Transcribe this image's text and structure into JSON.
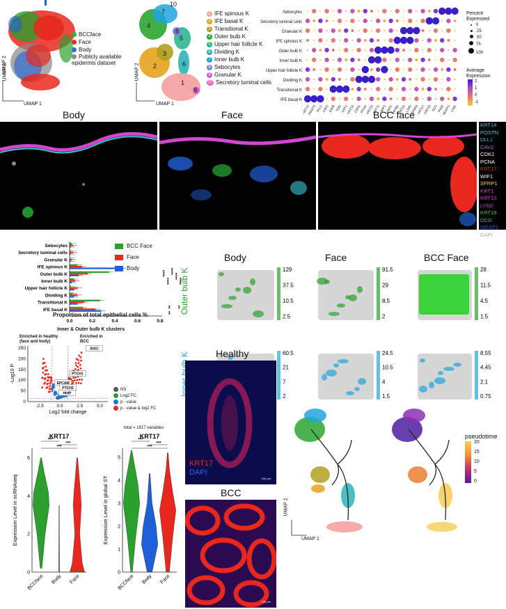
{
  "colors": {
    "green": "#2ca02c",
    "red": "#e8281e",
    "blue": "#1f5fd6",
    "grey": "#888888"
  },
  "umap_a": {
    "legend": [
      {
        "label": "BCCface",
        "color": "#2db52d"
      },
      {
        "label": "Face",
        "color": "#e32b1f"
      },
      {
        "label": "Body",
        "color": "#2f6fd3"
      },
      {
        "label": "Publicly available epidermis dataset",
        "color": "#8c8c8c"
      }
    ],
    "x_label": "UMAP 1",
    "y_label": "UMAP 2"
  },
  "umap_b": {
    "legend": [
      {
        "n": "1",
        "label": "IFE spinous K",
        "color": "#f4a3a0"
      },
      {
        "n": "2",
        "label": "IFE basal K",
        "color": "#e6a21e"
      },
      {
        "n": "3",
        "label": "Transitional K",
        "color": "#b0a020"
      },
      {
        "n": "4",
        "label": "Outer bulb K",
        "color": "#2aa530"
      },
      {
        "n": "5",
        "label": "Upper hair follicle K",
        "color": "#22b38a"
      },
      {
        "n": "6",
        "label": "Dividing K",
        "color": "#20aeb5"
      },
      {
        "n": "7",
        "label": "Inner bulb K",
        "color": "#22a5dc"
      },
      {
        "n": "8",
        "label": "Sebocytes",
        "color": "#7a7fdc"
      },
      {
        "n": "9",
        "label": "Granular K",
        "color": "#d05ad0"
      },
      {
        "n": "10",
        "label": "Secretory luminal cells",
        "color": "#ef5ea5"
      }
    ],
    "cluster_labels": [
      "1",
      "2",
      "3",
      "4",
      "5",
      "6",
      "7",
      "8",
      "9",
      "10"
    ],
    "x_label": "UMAP 1",
    "y_label": "UMAP 2"
  },
  "dotplot": {
    "rows": [
      "Sebocytes",
      "Secretory luminal cells",
      "Granular K",
      "IFE spinous K",
      "Outer bulb K",
      "Inner bulb K",
      "Upper hair follicle K",
      "Dividing K",
      "Transitional K",
      "IFE basal K"
    ],
    "genes": [
      "KRT14",
      "POSTN",
      "DLL1",
      "CAV2",
      "JUNB",
      "FOS",
      "KRT1",
      "KRT10",
      "CDH1",
      "PCNA",
      "KRT25",
      "KRT71",
      "WIF1",
      "SFRP1",
      "KRT6A",
      "KRT15",
      "LY6D",
      "SPRR3",
      "KRT17",
      "KRT19",
      "DCD",
      "PIGR",
      "MGST1",
      "LY6K"
    ],
    "pct_title": "Percent Expressed",
    "pct_values": [
      "0",
      "25",
      "50",
      "75",
      "100"
    ],
    "avg_title": "Average Expression",
    "avg_values": [
      "2",
      "1",
      "0",
      "-1"
    ]
  },
  "tissue_titles": {
    "body": "Body",
    "face": "Face",
    "bcc": "BCC face"
  },
  "markers": [
    {
      "name": "KRT14",
      "color": "#3ec7d6"
    },
    {
      "name": "POSTN",
      "color": "#3ec7d6"
    },
    {
      "name": "DLL1",
      "color": "#39b6e0"
    },
    {
      "name": "CAV2",
      "color": "#b46ce0"
    },
    {
      "name": "CDK1",
      "color": "#ffffff"
    },
    {
      "name": "PCNA",
      "color": "#ffffff"
    },
    {
      "name": "KRT17",
      "color": "#e8281e"
    },
    {
      "name": "WIF1",
      "color": "#ffffff"
    },
    {
      "name": "SFRP1",
      "color": "#ffd22a"
    },
    {
      "name": "KRT1",
      "color": "#e23fd6"
    },
    {
      "name": "KRT10",
      "color": "#e23fd6"
    },
    {
      "name": "LY6D",
      "color": "#b44bd6"
    },
    {
      "name": "KRT19",
      "color": "#2ecc40"
    },
    {
      "name": "DCD",
      "color": "#2ecc40"
    },
    {
      "name": "MGST1",
      "color": "#2f5fe0"
    },
    {
      "name": "DAPI",
      "color": "#aaaaaa"
    }
  ],
  "chart_data": [
    {
      "type": "bar",
      "title": "",
      "xlabel": "Proportion of total epithelial cells %",
      "categories": [
        "Sebocytes",
        "Secretory luminal cells",
        "Granular K",
        "IFE spinous K",
        "Outer bulb K",
        "Inner bulb K",
        "Upper hair follicle K",
        "Dividing K",
        "Transitional K",
        "IFE basal K"
      ],
      "series": [
        {
          "name": "BCC Face",
          "values": [
            0.02,
            0.01,
            0.0,
            0.07,
            0.35,
            0.04,
            0.01,
            0.03,
            0.27,
            0.12
          ]
        },
        {
          "name": "Face",
          "values": [
            0.03,
            0.03,
            0.02,
            0.11,
            0.16,
            0.05,
            0.07,
            0.07,
            0.13,
            0.23
          ]
        },
        {
          "name": "Body",
          "values": [
            0.01,
            0.01,
            0.01,
            0.46,
            0.08,
            0.02,
            0.04,
            0.04,
            0.07,
            0.28
          ]
        }
      ],
      "xticks": [
        "0.0",
        "0.2",
        "0.4",
        "0.6",
        "0.8"
      ],
      "xlim": [
        0,
        0.8
      ],
      "significance": [
        "****",
        "****",
        "****",
        "****",
        "****",
        "**",
        "**",
        "**"
      ]
    },
    {
      "type": "scatter",
      "title": "Inner & Outer bulb K clusters",
      "xlabel": "Log2 fold change",
      "ylabel": "-Log10 P",
      "xticks": [
        "-2.5",
        "0.0",
        "2.5",
        "5.0"
      ],
      "yticks": [
        "0",
        "50",
        "100",
        "150",
        "200",
        "250"
      ],
      "xlim": [
        -4,
        6
      ],
      "ylim": [
        0,
        260
      ],
      "legend": [
        {
          "label": "NS",
          "color": "#555555"
        },
        {
          "label": "Log2 FC",
          "color": "#2ca02c"
        },
        {
          "label": "p - value",
          "color": "#1f77d4"
        },
        {
          "label": "p - value & log2 FC",
          "color": "#e8281e"
        }
      ],
      "annotations": [
        {
          "label": "IGKC",
          "x": 4.3,
          "y": 245
        },
        {
          "label": "PTCH1",
          "x": 2.2,
          "y": 128
        },
        {
          "label": "EPCAM",
          "x": 0.4,
          "y": 85
        },
        {
          "label": "PTCH2",
          "x": 1.0,
          "y": 62
        },
        {
          "label": "HHIP",
          "x": 0.9,
          "y": 38
        }
      ],
      "left_note": "Enriched in healthy (face and body)",
      "right_note": "Enriched in BCC",
      "total_note": "total = 1817 variables"
    },
    {
      "type": "violin",
      "title": "KRT17",
      "ylabel": "Expression Level in scRNAseq",
      "categories": [
        "BCCface",
        "Body",
        "Face"
      ],
      "yticks": [
        "0",
        "2",
        "4",
        "6"
      ],
      "ylim": [
        0,
        6.5
      ],
      "colors": [
        "#2ca02c",
        "#1f5fd6",
        "#e8281e"
      ],
      "sig": [
        "***",
        "***",
        "***"
      ]
    },
    {
      "type": "violin",
      "title": "KRT17",
      "ylabel": "Expression Level in global ST",
      "categories": [
        "BCCface",
        "Body",
        "Face"
      ],
      "yticks": [
        "0",
        "1",
        "2",
        "3",
        "4",
        "5"
      ],
      "ylim": [
        0,
        5.4
      ],
      "colors": [
        "#2ca02c",
        "#1f5fd6",
        "#e8281e"
      ],
      "sig": [
        "***",
        "***",
        "***"
      ]
    }
  ],
  "spatial": {
    "col_titles": [
      "Body",
      "Face",
      "BCC Face"
    ],
    "row_labels": [
      "Outer bulb K",
      "Inner bulb K"
    ],
    "outer_scales": [
      [
        "129",
        "37.5",
        "10.5",
        "2.5"
      ],
      [
        "91.5",
        "29",
        "8.5",
        "2"
      ],
      [
        "28",
        "11.5",
        "4.5",
        "1.5"
      ]
    ],
    "inner_scales": [
      [
        "60.5",
        "21",
        "7",
        "2"
      ],
      [
        "24.5",
        "10.5",
        "4",
        "1.5"
      ],
      [
        "8.55",
        "4.45",
        "2.1",
        "0.75"
      ]
    ]
  },
  "if_images": {
    "healthy_title": "Healthy",
    "bcc_title": "BCC",
    "krt17": "KRT17",
    "dapi": "DAPI",
    "scale1": "100 µm",
    "scale2": "100 µm"
  },
  "trajectory": {
    "x_label": "UMAP 1",
    "y_label": "UMAP 2",
    "pseudotime_title": "pseudotime",
    "pseudotime_ticks": [
      "20",
      "15",
      "10",
      "5",
      "0"
    ]
  }
}
